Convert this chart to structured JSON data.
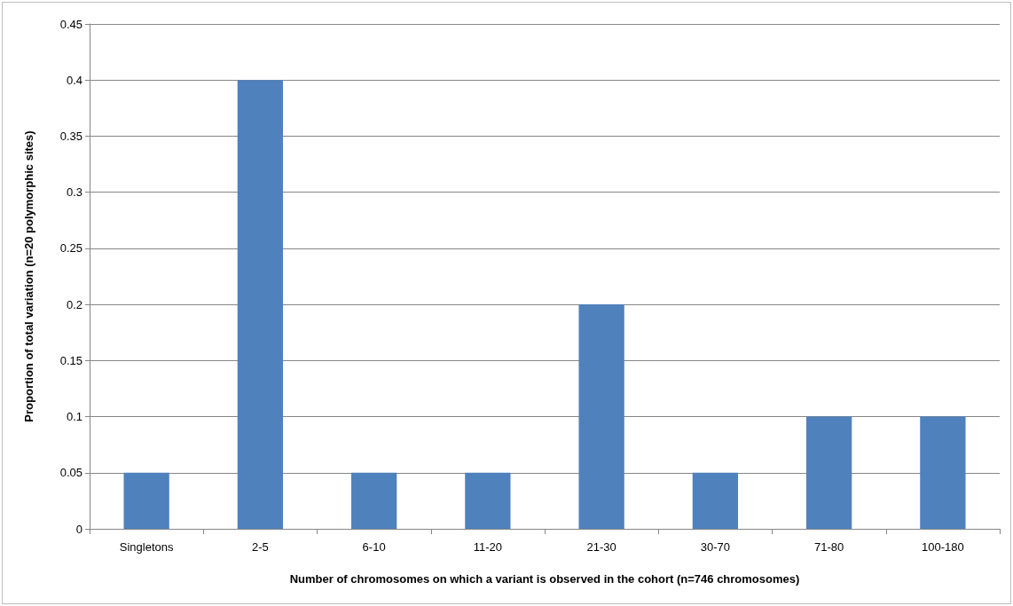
{
  "chart_data": {
    "type": "bar",
    "categories": [
      "Singletons",
      "2-5",
      "6-10",
      "11-20",
      "21-30",
      "30-70",
      "71-80",
      "100-180"
    ],
    "values": [
      0.05,
      0.4,
      0.05,
      0.05,
      0.2,
      0.05,
      0.1,
      0.1
    ],
    "color": "#4f81bd",
    "xlabel": "Number of chromosomes on which a variant is observed in the cohort (n=746 chromosomes)",
    "ylabel": "Proportion of total variation (n=20 polymorphic sites)",
    "ylim": [
      0,
      0.45
    ],
    "yticks": [
      0,
      0.05,
      0.1,
      0.15,
      0.2,
      0.25,
      0.3,
      0.35,
      0.4,
      0.45
    ],
    "grid": true
  }
}
